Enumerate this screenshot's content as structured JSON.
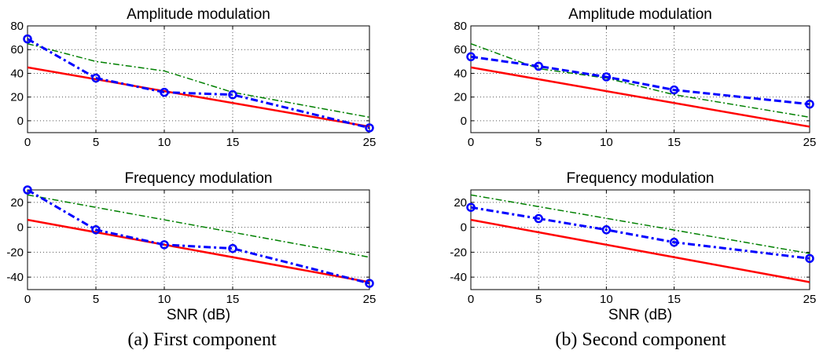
{
  "captions": {
    "a": "(a) First component",
    "b": "(b) Second component"
  },
  "colors": {
    "red_line": "#ff0000",
    "green_line": "#008000",
    "blue_line": "#0000ff",
    "grid": "#555555",
    "axes": "#000000"
  },
  "chart_data": [
    {
      "type": "line",
      "title": "Amplitude modulation",
      "xlabel": "",
      "ylabel": "",
      "x": [
        0,
        5,
        10,
        15,
        25
      ],
      "xticks": [
        "0",
        "5",
        "10",
        "15",
        "25"
      ],
      "yticks": [
        "80",
        "60",
        "40",
        "20",
        "0"
      ],
      "ylim": [
        -10,
        80
      ],
      "grid": true,
      "series": [
        {
          "style": "red-solid",
          "x": [
            0,
            25
          ],
          "values": [
            45,
            -5
          ]
        },
        {
          "style": "green-dashdot",
          "x": [
            0,
            5,
            10,
            15,
            25
          ],
          "values": [
            65,
            50,
            42,
            24,
            3
          ]
        },
        {
          "style": "blue-dashdot-circle",
          "x": [
            0,
            5,
            10,
            15,
            25
          ],
          "values": [
            69,
            36,
            24,
            22,
            -6
          ]
        }
      ]
    },
    {
      "type": "line",
      "title": "Frequency modulation",
      "xlabel": "SNR (dB)",
      "ylabel": "",
      "x": [
        0,
        5,
        10,
        15,
        25
      ],
      "xticks": [
        "0",
        "5",
        "10",
        "15",
        "25"
      ],
      "yticks": [
        "20",
        "0",
        "-20",
        "-40"
      ],
      "ylim": [
        -50,
        30
      ],
      "grid": true,
      "series": [
        {
          "style": "red-solid",
          "x": [
            0,
            25
          ],
          "values": [
            6,
            -44
          ]
        },
        {
          "style": "green-dashdot",
          "x": [
            0,
            25
          ],
          "values": [
            26,
            -24
          ]
        },
        {
          "style": "blue-dashdot-circle",
          "x": [
            0,
            5,
            10,
            15,
            25
          ],
          "values": [
            30,
            -2,
            -14,
            -17,
            -45
          ]
        }
      ]
    },
    {
      "type": "line",
      "title": "Amplitude modulation",
      "xlabel": "",
      "ylabel": "",
      "x": [
        0,
        5,
        10,
        15,
        25
      ],
      "xticks": [
        "0",
        "5",
        "10",
        "15",
        "25"
      ],
      "yticks": [
        "80",
        "60",
        "40",
        "20",
        "0"
      ],
      "ylim": [
        -10,
        80
      ],
      "grid": true,
      "series": [
        {
          "style": "red-solid",
          "x": [
            0,
            25
          ],
          "values": [
            45,
            -5
          ]
        },
        {
          "style": "green-dashdot",
          "x": [
            0,
            5,
            10,
            15,
            25
          ],
          "values": [
            65,
            44,
            36,
            22,
            3
          ]
        },
        {
          "style": "blue-dashed-circle",
          "x": [
            0,
            5,
            10,
            15,
            25
          ],
          "values": [
            54,
            46,
            37,
            26,
            14
          ]
        }
      ]
    },
    {
      "type": "line",
      "title": "Frequency modulation",
      "xlabel": "SNR (dB)",
      "ylabel": "",
      "x": [
        0,
        5,
        10,
        15,
        25
      ],
      "xticks": [
        "0",
        "5",
        "10",
        "15",
        "25"
      ],
      "yticks": [
        "20",
        "0",
        "-20",
        "-40"
      ],
      "ylim": [
        -50,
        30
      ],
      "grid": true,
      "series": [
        {
          "style": "red-solid",
          "x": [
            0,
            25
          ],
          "values": [
            6,
            -44
          ]
        },
        {
          "style": "green-dashdot",
          "x": [
            0,
            25
          ],
          "values": [
            26,
            -21
          ]
        },
        {
          "style": "blue-dashdot-circle",
          "x": [
            0,
            5,
            10,
            15,
            25
          ],
          "values": [
            16,
            7,
            -2,
            -12,
            -25
          ]
        }
      ]
    }
  ]
}
